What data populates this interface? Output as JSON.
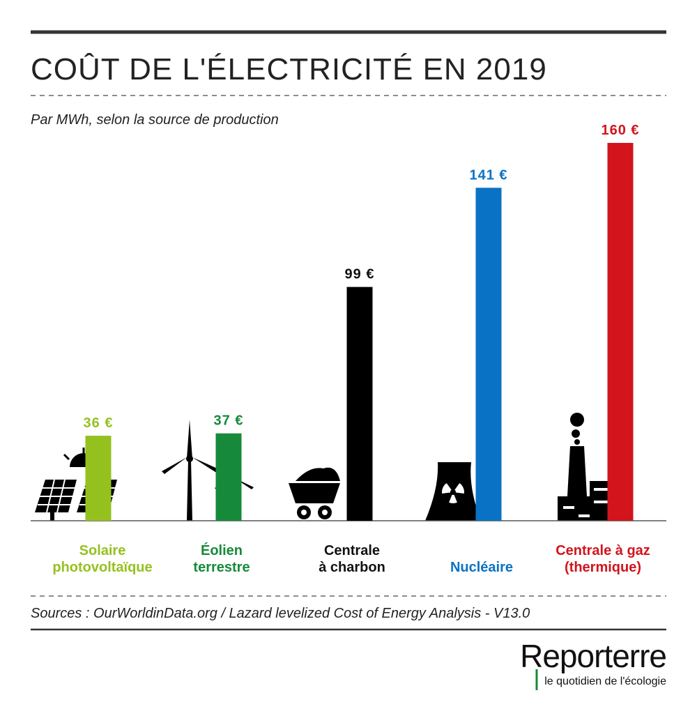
{
  "chart_data": {
    "type": "bar",
    "title": "COÛT DE L'ÉLECTRICITÉ EN 2019",
    "subtitle": "Par MWh, selon la source de production",
    "categories": [
      "Solaire\nphotovoltaïque",
      "Éolien\nterrestre",
      "Centrale\nà charbon",
      "Nucléaire",
      "Centrale à gaz\n(thermique)"
    ],
    "values": [
      36,
      37,
      99,
      141,
      160
    ],
    "value_labels": [
      "36 €",
      "37 €",
      "99 €",
      "141 €",
      "160 €"
    ],
    "colors": [
      "#95c11f",
      "#168a3a",
      "#000000",
      "#0a72c4",
      "#d2141c"
    ],
    "ylim": [
      0,
      160
    ],
    "source": "Sources : OurWorldinData.org / Lazard levelized Cost of Energy Analysis - V13.0"
  },
  "brand": {
    "name": "Reporterre",
    "tagline": "le quotidien de l'écologie"
  }
}
